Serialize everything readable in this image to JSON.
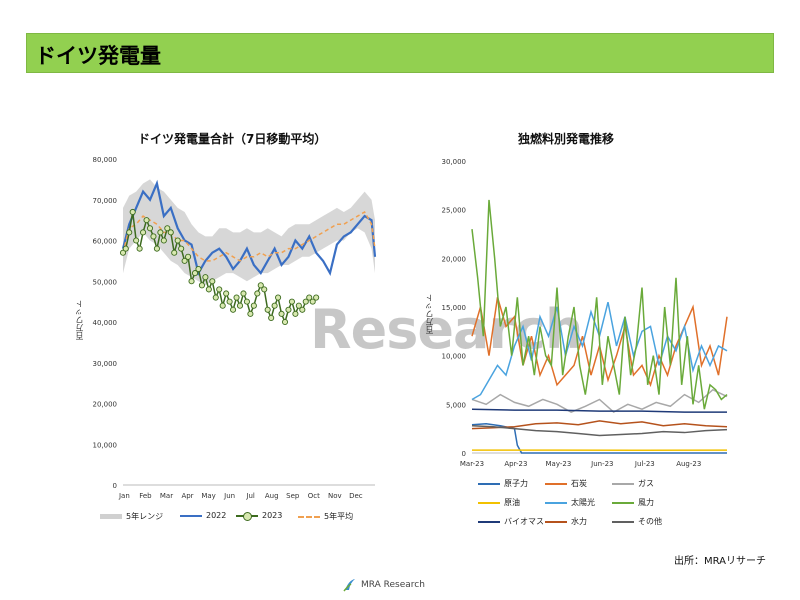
{
  "page": {
    "title": "ドイツ発電量",
    "source": "出所：MRAリサーチ",
    "watermark": "Research",
    "footer_brand": "MRA Research"
  },
  "colors": {
    "header_green": "#92d050",
    "range_gray": "#d0d0d0",
    "y2022": "#3a6fc4",
    "y2023": "#5a8a2e",
    "avg5": "#f0a050"
  },
  "chart_data": [
    {
      "type": "line",
      "title": "ドイツ発電量合計（7日移動平均）",
      "ylabel": "百万ワット",
      "ylim": [
        0,
        80000
      ],
      "yticks": [
        "0",
        "10,000",
        "20,000",
        "30,000",
        "40,000",
        "50,000",
        "60,000",
        "70,000",
        "80,000"
      ],
      "xticks": [
        "Jan",
        "Feb",
        "Mar",
        "Apr",
        "May",
        "Jun",
        "Jul",
        "Aug",
        "Sep",
        "Oct",
        "Nov",
        "Dec"
      ],
      "x_unit": "day-of-year",
      "range_band": {
        "name": "5年レンジ",
        "x": [
          1,
          10,
          20,
          30,
          40,
          50,
          60,
          70,
          80,
          90,
          100,
          110,
          120,
          130,
          140,
          150,
          160,
          170,
          180,
          190,
          200,
          210,
          220,
          230,
          240,
          250,
          260,
          270,
          280,
          290,
          300,
          310,
          320,
          330,
          340,
          350,
          360,
          365
        ],
        "low": [
          52000,
          58000,
          60000,
          62000,
          60000,
          59000,
          57000,
          55000,
          54000,
          52000,
          51000,
          50000,
          49000,
          50000,
          51000,
          52000,
          52000,
          51000,
          50000,
          51000,
          52000,
          52000,
          53000,
          54000,
          54000,
          55000,
          56000,
          56000,
          57000,
          58000,
          59000,
          60000,
          60000,
          62000,
          63000,
          62000,
          58000,
          52000
        ],
        "high": [
          68000,
          71000,
          72000,
          74000,
          75000,
          73000,
          72000,
          70000,
          68000,
          67000,
          64000,
          62000,
          61000,
          61000,
          63000,
          63000,
          62000,
          62000,
          63000,
          62000,
          62000,
          63000,
          62000,
          61000,
          63000,
          64000,
          64000,
          64000,
          65000,
          66000,
          67000,
          68000,
          67000,
          68000,
          70000,
          72000,
          70000,
          65000
        ]
      },
      "series": [
        {
          "name": "2022",
          "x": [
            1,
            10,
            20,
            30,
            40,
            50,
            60,
            70,
            80,
            90,
            100,
            110,
            120,
            130,
            140,
            150,
            160,
            170,
            180,
            190,
            200,
            210,
            220,
            230,
            240,
            250,
            260,
            270,
            280,
            290,
            300,
            310,
            320,
            330,
            340,
            350,
            360,
            365
          ],
          "values": [
            58000,
            64000,
            68000,
            72000,
            70000,
            74000,
            66000,
            68000,
            63000,
            60000,
            59000,
            52000,
            55000,
            57000,
            58000,
            56000,
            53000,
            55000,
            58000,
            54000,
            52000,
            55000,
            58000,
            54000,
            56000,
            60000,
            58000,
            61000,
            57000,
            55000,
            52000,
            59000,
            61000,
            62000,
            64000,
            66000,
            65000,
            56000
          ]
        },
        {
          "name": "2023",
          "x": [
            1,
            5,
            10,
            15,
            20,
            25,
            30,
            35,
            40,
            45,
            50,
            55,
            60,
            65,
            70,
            75,
            80,
            85,
            90,
            95,
            100,
            105,
            110,
            115,
            120,
            125,
            130,
            135,
            140,
            145,
            150,
            155,
            160,
            165,
            170,
            175,
            180,
            185,
            190,
            195,
            200,
            205,
            210,
            215,
            220,
            225,
            230,
            235,
            240,
            245,
            250,
            255,
            260,
            265,
            270,
            275,
            280
          ],
          "values": [
            57000,
            58000,
            62000,
            67000,
            60000,
            58000,
            62000,
            65000,
            63000,
            61000,
            58000,
            62000,
            60000,
            63000,
            62000,
            57000,
            60000,
            58000,
            55000,
            56000,
            50000,
            52000,
            53000,
            49000,
            51000,
            48000,
            50000,
            46000,
            48000,
            44000,
            47000,
            45000,
            43000,
            46000,
            44000,
            47000,
            45000,
            42000,
            44000,
            47000,
            49000,
            48000,
            43000,
            41000,
            44000,
            46000,
            42000,
            40000,
            43000,
            45000,
            42000,
            44000,
            43000,
            45000,
            46000,
            45000,
            46000
          ]
        },
        {
          "name": "5年平均",
          "x": [
            1,
            10,
            20,
            30,
            40,
            50,
            60,
            70,
            80,
            90,
            100,
            110,
            120,
            130,
            140,
            150,
            160,
            170,
            180,
            190,
            200,
            210,
            220,
            230,
            240,
            250,
            260,
            270,
            280,
            290,
            300,
            310,
            320,
            330,
            340,
            350,
            360,
            365
          ],
          "values": [
            57000,
            63000,
            64000,
            66000,
            65000,
            64000,
            62000,
            62000,
            60000,
            60000,
            58000,
            56000,
            55000,
            55000,
            56000,
            57000,
            56000,
            55000,
            56000,
            56000,
            57000,
            56000,
            57000,
            57000,
            58000,
            58000,
            59000,
            60000,
            61000,
            62000,
            63000,
            64000,
            64000,
            65000,
            66000,
            67000,
            64000,
            58000
          ]
        }
      ]
    },
    {
      "type": "line",
      "title": "独燃料別発電推移",
      "ylabel": "百万ワット",
      "ylim": [
        0,
        30000
      ],
      "yticks": [
        "0",
        "5,000",
        "10,000",
        "15,000",
        "20,000",
        "25,000",
        "30,000"
      ],
      "xticks": [
        "Mar-23",
        "Apr-23",
        "May-23",
        "Jun-23",
        "Jul-23",
        "Aug-23"
      ],
      "x_unit": "day since 2023-03-01",
      "series": [
        {
          "name": "原子力",
          "color": "#2e6db4",
          "x": [
            0,
            10,
            20,
            30,
            32,
            35,
            60,
            90,
            120,
            150,
            180
          ],
          "values": [
            2900,
            3000,
            2800,
            2500,
            800,
            0,
            0,
            0,
            0,
            0,
            0
          ]
        },
        {
          "name": "石炭",
          "color": "#e0702a",
          "x": [
            0,
            6,
            12,
            18,
            24,
            30,
            36,
            42,
            48,
            54,
            60,
            66,
            72,
            78,
            84,
            90,
            96,
            102,
            108,
            114,
            120,
            126,
            132,
            138,
            144,
            150,
            156,
            162,
            168,
            174,
            180
          ],
          "values": [
            12000,
            15000,
            10000,
            16000,
            13000,
            14000,
            9000,
            12000,
            8000,
            10000,
            7000,
            8000,
            9000,
            12000,
            8000,
            11000,
            7500,
            10000,
            13000,
            8000,
            9000,
            7000,
            10000,
            8000,
            11000,
            13000,
            15000,
            9000,
            11000,
            8000,
            14000
          ]
        },
        {
          "name": "ガス",
          "color": "#a8a8a8",
          "x": [
            0,
            10,
            20,
            30,
            40,
            50,
            60,
            70,
            80,
            90,
            100,
            110,
            120,
            130,
            140,
            150,
            160,
            170,
            180
          ],
          "values": [
            5500,
            5000,
            6000,
            5200,
            4800,
            5500,
            5000,
            4200,
            4800,
            5500,
            4200,
            5000,
            4500,
            5200,
            4800,
            6000,
            5200,
            6500,
            5800
          ]
        },
        {
          "name": "原油",
          "color": "#f2c100",
          "x": [
            0,
            60,
            120,
            180
          ],
          "values": [
            300,
            300,
            280,
            300
          ]
        },
        {
          "name": "太陽光",
          "color": "#4aa3df",
          "x": [
            0,
            6,
            12,
            18,
            24,
            30,
            36,
            42,
            48,
            54,
            60,
            66,
            72,
            78,
            84,
            90,
            96,
            102,
            108,
            114,
            120,
            126,
            132,
            138,
            144,
            150,
            156,
            162,
            168,
            174,
            180
          ],
          "values": [
            5500,
            6000,
            7500,
            9000,
            8000,
            11000,
            13000,
            9500,
            14000,
            12000,
            15000,
            10000,
            13000,
            11000,
            14500,
            12000,
            15500,
            11000,
            14000,
            10000,
            12500,
            13000,
            9000,
            12000,
            10500,
            13000,
            8500,
            11000,
            9000,
            11000,
            10500
          ]
        },
        {
          "name": "風力",
          "color": "#6aaa3a",
          "x": [
            0,
            4,
            8,
            12,
            16,
            20,
            24,
            28,
            32,
            36,
            40,
            44,
            48,
            52,
            56,
            60,
            64,
            68,
            72,
            76,
            80,
            84,
            88,
            92,
            96,
            100,
            104,
            108,
            112,
            116,
            120,
            124,
            128,
            132,
            136,
            140,
            144,
            148,
            152,
            156,
            160,
            164,
            168,
            172,
            176,
            180
          ],
          "values": [
            23000,
            18000,
            12000,
            26000,
            20000,
            13000,
            15000,
            10000,
            16000,
            9000,
            12000,
            8000,
            13000,
            10000,
            9000,
            17000,
            8000,
            12000,
            15000,
            9000,
            6000,
            10000,
            16000,
            7000,
            12000,
            9000,
            6000,
            14000,
            8000,
            11000,
            17000,
            7000,
            10000,
            6000,
            15000,
            9000,
            18000,
            7000,
            12000,
            5000,
            9000,
            4500,
            7000,
            6500,
            5500,
            6000
          ]
        },
        {
          "name": "バイオマス",
          "color": "#1f3a78",
          "x": [
            0,
            30,
            60,
            90,
            120,
            150,
            180
          ],
          "values": [
            4500,
            4400,
            4400,
            4300,
            4300,
            4200,
            4200
          ]
        },
        {
          "name": "水力",
          "color": "#b5521c",
          "x": [
            0,
            15,
            30,
            45,
            60,
            75,
            90,
            105,
            120,
            135,
            150,
            165,
            180
          ],
          "values": [
            2500,
            2600,
            2700,
            3000,
            3100,
            2900,
            3300,
            3000,
            3200,
            2800,
            3000,
            2800,
            2700
          ]
        },
        {
          "name": "その他",
          "color": "#606060",
          "x": [
            0,
            15,
            30,
            45,
            60,
            75,
            90,
            105,
            120,
            135,
            150,
            165,
            180
          ],
          "values": [
            2800,
            2700,
            2500,
            2300,
            2200,
            2000,
            1800,
            1900,
            2000,
            2200,
            2100,
            2300,
            2400
          ]
        }
      ]
    }
  ]
}
